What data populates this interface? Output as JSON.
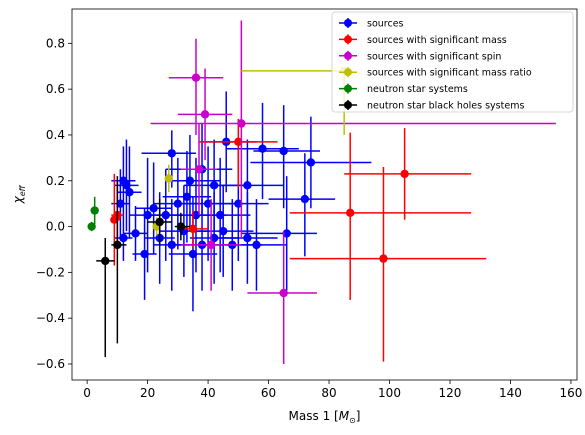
{
  "chart_data": {
    "type": "scatter",
    "xlabel_main": "Mass 1 [",
    "xlabel_sub": "⊙",
    "xlabel_unit": "M",
    "xlabel_close": "]",
    "ylabel_main": "χ",
    "ylabel_sub": "eff",
    "xlim": [
      -5,
      162
    ],
    "ylim": [
      -0.67,
      0.95
    ],
    "xticks": [
      0,
      20,
      40,
      60,
      80,
      100,
      120,
      140,
      160
    ],
    "yticks": [
      -0.6,
      -0.4,
      -0.2,
      0.0,
      0.2,
      0.4,
      0.6,
      0.8
    ],
    "ytick_labels": [
      "−0.6",
      "−0.4",
      "−0.2",
      "0.0",
      "0.2",
      "0.4",
      "0.6",
      "0.8"
    ],
    "legend_position": "top-right",
    "series": [
      {
        "name": "sources",
        "color": "#0000ff",
        "points": [
          {
            "x": 46,
            "y": 0.37,
            "xerr": [
              8,
              10
            ],
            "yerr": [
              0.22,
              0.22
            ]
          },
          {
            "x": 58,
            "y": 0.34,
            "xerr": [
              12,
              12
            ],
            "yerr": [
              0.22,
              0.2
            ]
          },
          {
            "x": 65,
            "y": 0.33,
            "xerr": [
              10,
              12
            ],
            "yerr": [
              0.25,
              0.2
            ]
          },
          {
            "x": 74,
            "y": 0.28,
            "xerr": [
              20,
              20
            ],
            "yerr": [
              0.2,
              0.2
            ]
          },
          {
            "x": 72,
            "y": 0.12,
            "xerr": [
              12,
              10
            ],
            "yerr": [
              0.25,
              0.2
            ]
          },
          {
            "x": 53,
            "y": 0.18,
            "xerr": [
              10,
              12
            ],
            "yerr": [
              0.2,
              0.2
            ]
          },
          {
            "x": 66,
            "y": -0.03,
            "xerr": [
              15,
              10
            ],
            "yerr": [
              0.25,
              0.25
            ]
          },
          {
            "x": 53,
            "y": -0.05,
            "xerr": [
              10,
              10
            ],
            "yerr": [
              0.2,
              0.2
            ]
          },
          {
            "x": 28,
            "y": 0.32,
            "xerr": [
              10,
              8
            ],
            "yerr": [
              0.15,
              0.1
            ]
          },
          {
            "x": 34,
            "y": 0.2,
            "xerr": [
              8,
              10
            ],
            "yerr": [
              0.2,
              0.2
            ]
          },
          {
            "x": 38,
            "y": 0.25,
            "xerr": [
              12,
              10
            ],
            "yerr": [
              0.2,
              0.2
            ]
          },
          {
            "x": 40,
            "y": 0.1,
            "xerr": [
              10,
              10
            ],
            "yerr": [
              0.25,
              0.25
            ]
          },
          {
            "x": 42,
            "y": 0.18,
            "xerr": [
              10,
              10
            ],
            "yerr": [
              0.2,
              0.2
            ]
          },
          {
            "x": 44,
            "y": 0.05,
            "xerr": [
              10,
              10
            ],
            "yerr": [
              0.25,
              0.25
            ]
          },
          {
            "x": 36,
            "y": 0.05,
            "xerr": [
              10,
              10
            ],
            "yerr": [
              0.25,
              0.25
            ]
          },
          {
            "x": 32,
            "y": -0.02,
            "xerr": [
              8,
              8
            ],
            "yerr": [
              0.2,
              0.2
            ]
          },
          {
            "x": 38,
            "y": -0.08,
            "xerr": [
              10,
              10
            ],
            "yerr": [
              0.2,
              0.2
            ]
          },
          {
            "x": 45,
            "y": -0.02,
            "xerr": [
              10,
              10
            ],
            "yerr": [
              0.2,
              0.2
            ]
          },
          {
            "x": 48,
            "y": -0.08,
            "xerr": [
              10,
              10
            ],
            "yerr": [
              0.2,
              0.2
            ]
          },
          {
            "x": 50,
            "y": 0.1,
            "xerr": [
              10,
              10
            ],
            "yerr": [
              0.25,
              0.25
            ]
          },
          {
            "x": 30,
            "y": 0.1,
            "xerr": [
              8,
              8
            ],
            "yerr": [
              0.2,
              0.2
            ]
          },
          {
            "x": 26,
            "y": 0.05,
            "xerr": [
              6,
              6
            ],
            "yerr": [
              0.2,
              0.2
            ]
          },
          {
            "x": 22,
            "y": 0.08,
            "xerr": [
              6,
              6
            ],
            "yerr": [
              0.2,
              0.2
            ]
          },
          {
            "x": 20,
            "y": 0.05,
            "xerr": [
              6,
              6
            ],
            "yerr": [
              0.25,
              0.25
            ]
          },
          {
            "x": 19,
            "y": -0.12,
            "xerr": [
              4,
              4
            ],
            "yerr": [
              0.2,
              0.2
            ]
          },
          {
            "x": 24,
            "y": -0.05,
            "xerr": [
              5,
              5
            ],
            "yerr": [
              0.2,
              0.2
            ]
          },
          {
            "x": 12,
            "y": 0.2,
            "xerr": [
              4,
              4
            ],
            "yerr": [
              0.15,
              0.15
            ]
          },
          {
            "x": 13,
            "y": 0.18,
            "xerr": [
              4,
              4
            ],
            "yerr": [
              0.2,
              0.2
            ]
          },
          {
            "x": 14,
            "y": 0.15,
            "xerr": [
              4,
              4
            ],
            "yerr": [
              0.2,
              0.2
            ]
          },
          {
            "x": 11,
            "y": 0.1,
            "xerr": [
              3,
              3
            ],
            "yerr": [
              0.15,
              0.15
            ]
          },
          {
            "x": 12,
            "y": -0.05,
            "xerr": [
              3,
              3
            ],
            "yerr": [
              0.1,
              0.1
            ]
          },
          {
            "x": 16,
            "y": -0.03,
            "xerr": [
              4,
              4
            ],
            "yerr": [
              0.12,
              0.12
            ]
          },
          {
            "x": 28,
            "y": -0.08,
            "xerr": [
              6,
              6
            ],
            "yerr": [
              0.2,
              0.2
            ]
          },
          {
            "x": 33,
            "y": 0.13,
            "xerr": [
              8,
              8
            ],
            "yerr": [
              0.2,
              0.2
            ]
          },
          {
            "x": 35,
            "y": -0.12,
            "xerr": [
              8,
              8
            ],
            "yerr": [
              0.25,
              0.25
            ]
          },
          {
            "x": 42,
            "y": -0.05,
            "xerr": [
              8,
              8
            ],
            "yerr": [
              0.2,
              0.2
            ]
          },
          {
            "x": 56,
            "y": -0.08,
            "xerr": [
              10,
              10
            ],
            "yerr": [
              0.2,
              0.2
            ]
          }
        ]
      },
      {
        "name": "sources with significant mass",
        "color": "#ff0000",
        "points": [
          {
            "x": 105,
            "y": 0.23,
            "xerr": [
              20,
              22
            ],
            "yerr": [
              0.2,
              0.2
            ]
          },
          {
            "x": 87,
            "y": 0.06,
            "xerr": [
              20,
              40
            ],
            "yerr": [
              0.38,
              0.35
            ]
          },
          {
            "x": 98,
            "y": -0.14,
            "xerr": [
              31,
              34
            ],
            "yerr": [
              0.45,
              0.4
            ]
          },
          {
            "x": 50,
            "y": 0.37,
            "xerr": [
              13,
              13
            ],
            "yerr": [
              0.2,
              0.1
            ]
          },
          {
            "x": 35,
            "y": -0.01,
            "xerr": [
              5,
              5
            ],
            "yerr": [
              0.08,
              0.08
            ]
          },
          {
            "x": 9,
            "y": 0.03,
            "xerr": [
              1,
              2
            ],
            "yerr": [
              0.2,
              0.2
            ]
          },
          {
            "x": 10,
            "y": 0.05,
            "xerr": [
              2,
              2
            ],
            "yerr": [
              0.15,
              0.15
            ]
          }
        ]
      },
      {
        "name": "sources with significant spin",
        "color": "#cc00cc",
        "points": [
          {
            "x": 36,
            "y": 0.65,
            "xerr": [
              9,
              9
            ],
            "yerr": [
              0.25,
              0.17
            ]
          },
          {
            "x": 39,
            "y": 0.49,
            "xerr": [
              9,
              9
            ],
            "yerr": [
              0.2,
              0.2
            ]
          },
          {
            "x": 51,
            "y": 0.45,
            "xerr": [
              30,
              104
            ],
            "yerr": [
              0.5,
              0.45
            ]
          },
          {
            "x": 37,
            "y": 0.25,
            "xerr": [
              6,
              6
            ],
            "yerr": [
              0.2,
              0.2
            ]
          },
          {
            "x": 41,
            "y": -0.08,
            "xerr": [
              10,
              10
            ],
            "yerr": [
              0.2,
              0.2
            ]
          },
          {
            "x": 65,
            "y": -0.29,
            "xerr": [
              12,
              11
            ],
            "yerr": [
              0.31,
              0.27
            ]
          }
        ]
      },
      {
        "name": "sources with significant mass ratio",
        "color": "#bfbf00",
        "points": [
          {
            "x": 27,
            "y": 0.21,
            "xerr": [
              0,
              0
            ],
            "yerr": [
              0.06,
              0.06
            ]
          },
          {
            "x": 23,
            "y": 0.0,
            "xerr": [
              0,
              0
            ],
            "yerr": [
              0.04,
              0.04
            ]
          },
          {
            "x": 85,
            "y": 0.68,
            "xerr": [
              34,
              0
            ],
            "yerr": [
              0.28,
              0
            ]
          }
        ]
      },
      {
        "name": "neutron star systems",
        "color": "#008000",
        "points": [
          {
            "x": 1.5,
            "y": 0.0,
            "xerr": [
              0,
              0
            ],
            "yerr": [
              0.02,
              0.02
            ]
          },
          {
            "x": 2.5,
            "y": 0.07,
            "xerr": [
              0,
              0
            ],
            "yerr": [
              0.06,
              0.06
            ]
          }
        ]
      },
      {
        "name": "neutron star black holes systems",
        "color": "#000000",
        "points": [
          {
            "x": 6,
            "y": -0.15,
            "xerr": [
              3,
              3
            ],
            "yerr": [
              0.42,
              0.1
            ]
          },
          {
            "x": 10,
            "y": -0.08,
            "xerr": [
              2,
              3
            ],
            "yerr": [
              0.43,
              0.3
            ]
          },
          {
            "x": 24,
            "y": 0.02,
            "xerr": [
              4,
              4
            ],
            "yerr": [
              0.1,
              0.1
            ]
          },
          {
            "x": 31,
            "y": 0.0,
            "xerr": [
              2,
              3
            ],
            "yerr": [
              0.06,
              0.06
            ]
          }
        ]
      }
    ]
  }
}
